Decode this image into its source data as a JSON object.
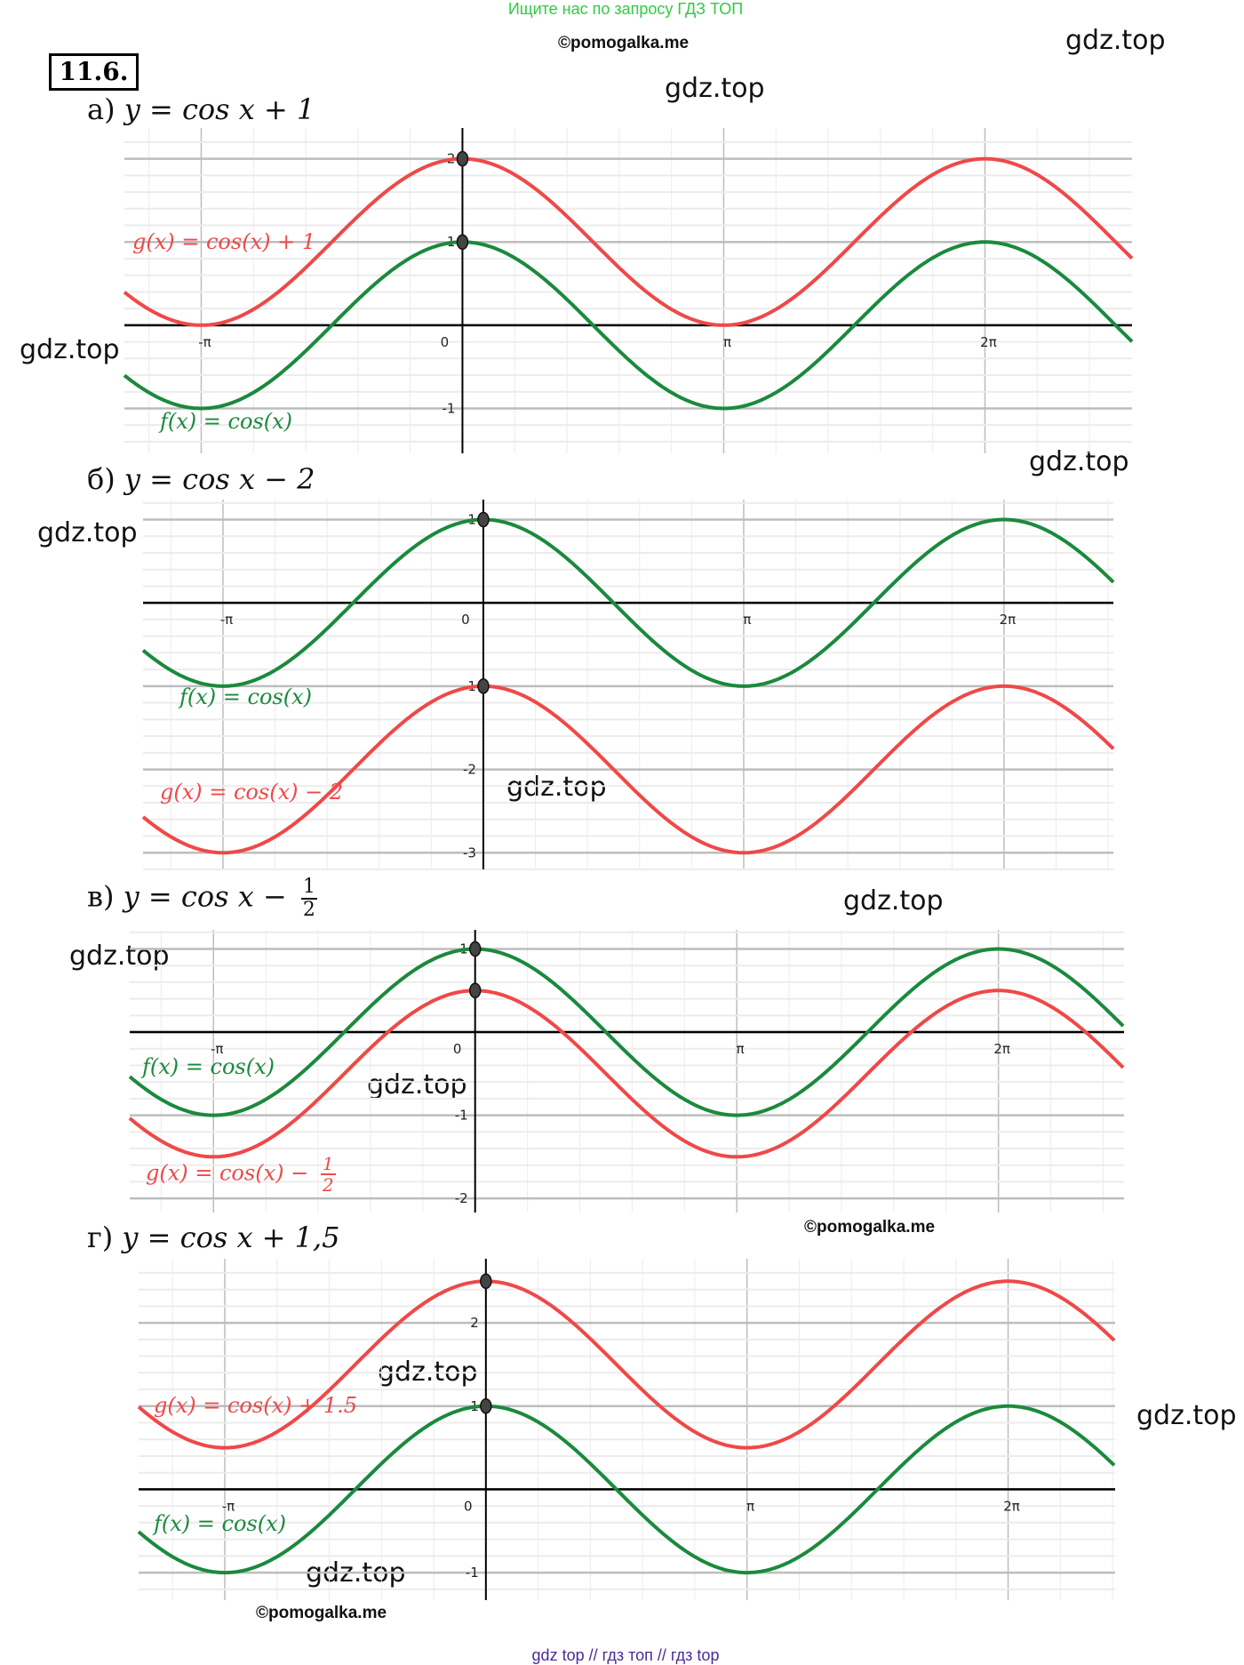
{
  "watermarks": {
    "top_ad": "Ищите нас по запросу ГДЗ ТОП",
    "bottom_ad": "gdz top  //  гдз топ  //  гдз top",
    "copyright": "©pomogalka.me",
    "site": "gdz.top"
  },
  "problem_number": "11.6.",
  "headings": [
    {
      "label": "а)",
      "formula": "y = cos x + 1"
    },
    {
      "label": "б)",
      "formula": "y = cos x − 2"
    },
    {
      "label": "в)",
      "formula": "y = cos x −",
      "frac_num": "1",
      "frac_den": "2"
    },
    {
      "label": "г)",
      "formula": "y = cos x + 1,5"
    }
  ],
  "colors": {
    "f": "#1a8a3c",
    "g": "#f04848",
    "axis": "#000000",
    "major_grid": "#bdbdbd",
    "minor_grid": "#ececec"
  },
  "chart_data": [
    {
      "type": "line",
      "title": "а) y = cos x + 1",
      "xlim_pi": [
        -1.294,
        2.563
      ],
      "ylim": [
        -1.54,
        2.37
      ],
      "x_ticks": [
        "-π",
        "0",
        "π",
        "2π"
      ],
      "y_ticks": [
        2,
        1,
        -1
      ],
      "series": [
        {
          "name": "f(x) = cos(x)",
          "shift": 0,
          "legend": {
            "text": "f(x)  =  cos(x)"
          }
        },
        {
          "name": "g(x) = cos(x) + 1",
          "shift": 1,
          "legend": {
            "text": "g(x)  =  cos(x) + 1"
          }
        }
      ],
      "points": [
        [
          0,
          2
        ],
        [
          0,
          1
        ]
      ]
    },
    {
      "type": "line",
      "title": "б) y = cos x − 2",
      "xlim_pi": [
        -1.307,
        2.42
      ],
      "ylim": [
        -3.2,
        1.24
      ],
      "x_ticks": [
        "-π",
        "0",
        "π",
        "2π"
      ],
      "y_ticks": [
        1,
        -1,
        -2,
        -3
      ],
      "series": [
        {
          "name": "f(x) = cos(x)",
          "shift": 0,
          "legend": {
            "text": "f(x)  =  cos(x)"
          }
        },
        {
          "name": "g(x) = cos(x) − 2",
          "shift": -2,
          "legend": {
            "text": "g(x)  =  cos(x) − 2"
          }
        }
      ],
      "points": [
        [
          0,
          1
        ],
        [
          0,
          -1
        ]
      ]
    },
    {
      "type": "line",
      "title": "в) y = cos x − 1/2",
      "xlim_pi": [
        -1.32,
        2.48
      ],
      "ylim": [
        -2.17,
        1.23
      ],
      "x_ticks": [
        "-π",
        "0",
        "π",
        "2π"
      ],
      "y_ticks": [
        1,
        -1,
        -2
      ],
      "series": [
        {
          "name": "f(x) = cos(x)",
          "shift": 0,
          "legend": {
            "text": "f(x)  =  cos(x)"
          }
        },
        {
          "name": "g(x) = cos(x) − 1/2",
          "shift": -0.5,
          "legend": {
            "text": "g(x)  =  cos(x) − ",
            "num": "1",
            "den": "2"
          }
        }
      ],
      "points": [
        [
          0,
          1
        ],
        [
          0,
          0.5
        ]
      ]
    },
    {
      "type": "line",
      "title": "г) y = cos x + 1,5",
      "xlim_pi": [
        -1.33,
        2.41
      ],
      "ylim": [
        -1.33,
        2.77
      ],
      "x_ticks": [
        "-π",
        "0",
        "π",
        "2π"
      ],
      "y_ticks": [
        2,
        1,
        -1
      ],
      "series": [
        {
          "name": "f(x) = cos(x)",
          "shift": 0,
          "legend": {
            "text": "f(x)  =  cos(x)"
          }
        },
        {
          "name": "g(x) = cos(x) + 1.5",
          "shift": 1.5,
          "legend": {
            "text": "g(x)  =  cos(x) + 1.5"
          }
        }
      ],
      "points": [
        [
          0,
          2.5
        ],
        [
          0,
          1
        ]
      ]
    }
  ]
}
